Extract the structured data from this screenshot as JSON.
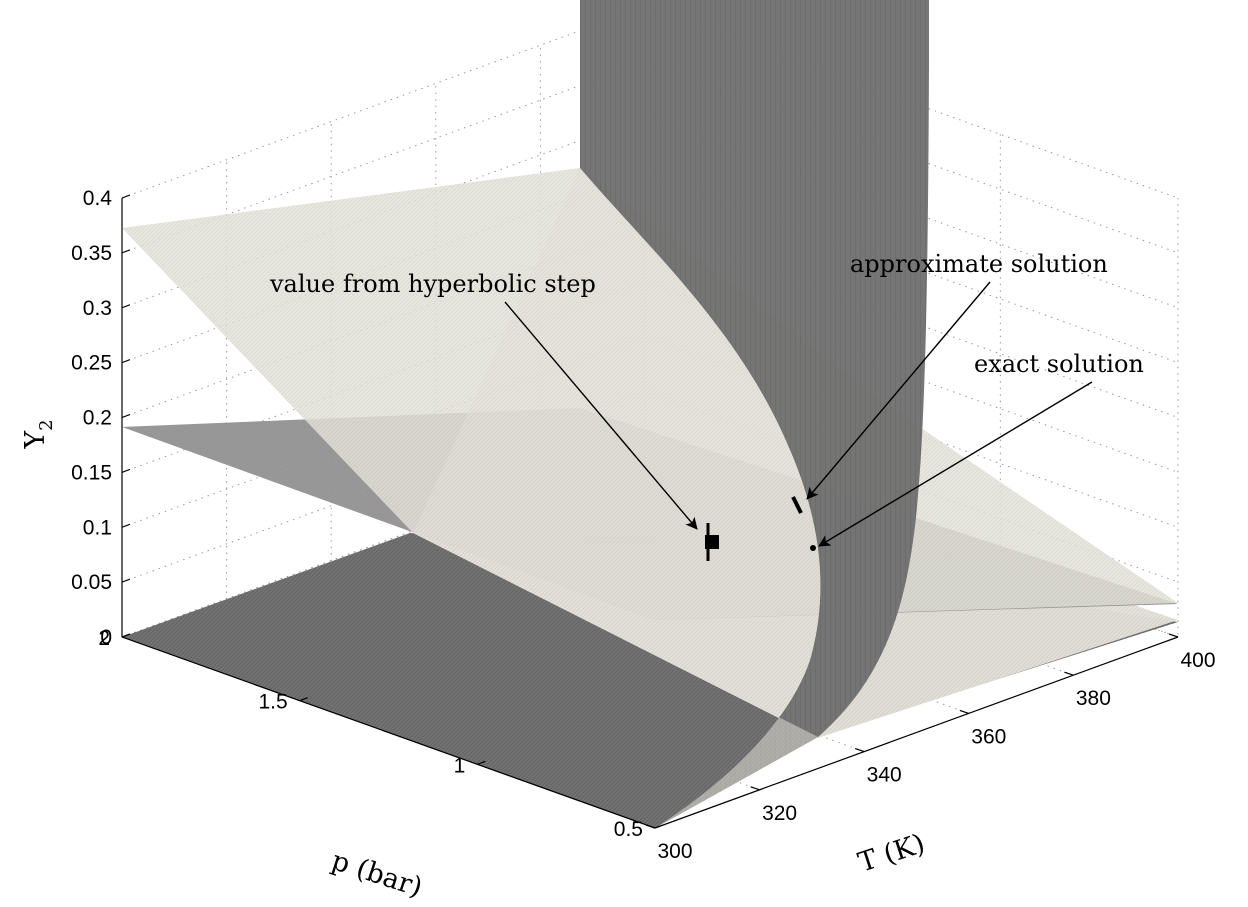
{
  "chart_data": {
    "type": "surface",
    "title": "",
    "axes": {
      "x": {
        "label": "p (bar)",
        "range": [
          0.5,
          2
        ],
        "ticks": [
          0.5,
          1,
          1.5,
          2
        ],
        "tick_labels": [
          "0.5",
          "1",
          "1.5",
          "2"
        ]
      },
      "y": {
        "label": "T (K)",
        "range": [
          300,
          400
        ],
        "ticks": [
          300,
          320,
          340,
          360,
          380,
          400
        ],
        "tick_labels": [
          "300",
          "320",
          "340",
          "360",
          "380",
          "400"
        ]
      },
      "z": {
        "label": "Y",
        "label_subscript": "2",
        "range": [
          0,
          0.4
        ],
        "ticks": [
          0,
          0.05,
          0.1,
          0.15,
          0.2,
          0.25,
          0.3,
          0.35,
          0.4
        ],
        "tick_labels": [
          "0",
          "0.05",
          "0.1",
          "0.15",
          "0.2",
          "0.25",
          "0.3",
          "0.35",
          "0.4"
        ]
      }
    },
    "grid": true,
    "colors": {
      "light_surface": "#e3e1d9",
      "mid_surface": "#8c8c8c",
      "dark_surface": "#6e6e6e"
    },
    "points": [
      {
        "label": "value from hyperbolic step",
        "p": 1.22,
        "T": 345,
        "Y2": 0.09
      },
      {
        "label": "approximate solution",
        "p": 1.05,
        "T": 352,
        "Y2": 0.12
      },
      {
        "label": "exact solution",
        "p": 1.0,
        "T": 354,
        "Y2": 0.08
      }
    ]
  }
}
